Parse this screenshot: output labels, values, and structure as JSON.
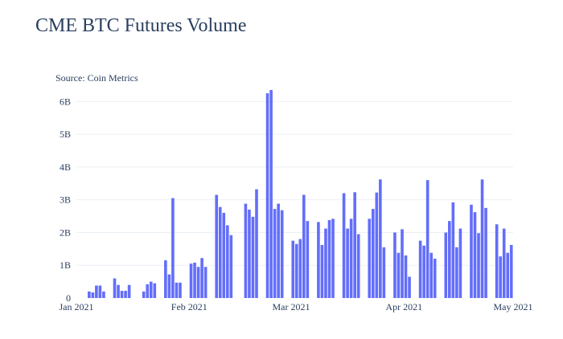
{
  "title": "CME BTC Futures Volume",
  "chart_data": {
    "type": "bar",
    "title": "CME BTC Futures Volume",
    "annotation": "Source: Coin Metrics",
    "xlabel": "",
    "ylabel": "",
    "x_start": "2021-01-01",
    "x_end": "2021-05-01",
    "x_ticks": [
      "Jan 2021",
      "Feb 2021",
      "Mar 2021",
      "Apr 2021",
      "May 2021"
    ],
    "y_ticks": [
      "0",
      "1B",
      "2B",
      "3B",
      "4B",
      "5B",
      "6B"
    ],
    "ylim": [
      0,
      6.4
    ],
    "y_unit": "B",
    "grid": true,
    "bar_color": "#636efa",
    "series": [
      {
        "x": [
          "2021-01-04",
          "2021-01-05",
          "2021-01-06",
          "2021-01-07",
          "2021-01-08",
          "2021-01-11",
          "2021-01-12",
          "2021-01-13",
          "2021-01-14",
          "2021-01-15",
          "2021-01-19",
          "2021-01-20",
          "2021-01-21",
          "2021-01-22",
          "2021-01-25",
          "2021-01-26",
          "2021-01-27",
          "2021-01-28",
          "2021-01-29",
          "2021-02-01",
          "2021-02-02",
          "2021-02-03",
          "2021-02-04",
          "2021-02-05",
          "2021-02-08",
          "2021-02-09",
          "2021-02-10",
          "2021-02-11",
          "2021-02-12",
          "2021-02-16",
          "2021-02-17",
          "2021-02-18",
          "2021-02-19",
          "2021-02-22",
          "2021-02-23",
          "2021-02-24",
          "2021-02-25",
          "2021-02-26",
          "2021-03-01",
          "2021-03-02",
          "2021-03-03",
          "2021-03-04",
          "2021-03-05",
          "2021-03-08",
          "2021-03-09",
          "2021-03-10",
          "2021-03-11",
          "2021-03-12",
          "2021-03-15",
          "2021-03-16",
          "2021-03-17",
          "2021-03-18",
          "2021-03-19",
          "2021-03-22",
          "2021-03-23",
          "2021-03-24",
          "2021-03-25",
          "2021-03-26",
          "2021-03-29",
          "2021-03-30",
          "2021-03-31",
          "2021-04-01",
          "2021-04-02",
          "2021-04-05",
          "2021-04-06",
          "2021-04-07",
          "2021-04-08",
          "2021-04-09",
          "2021-04-12",
          "2021-04-13",
          "2021-04-14",
          "2021-04-15",
          "2021-04-16",
          "2021-04-19",
          "2021-04-20",
          "2021-04-21",
          "2021-04-22",
          "2021-04-23",
          "2021-04-26",
          "2021-04-27",
          "2021-04-28",
          "2021-04-29",
          "2021-04-30"
        ],
        "values": [
          0.2,
          0.17,
          0.38,
          0.38,
          0.2,
          0.6,
          0.4,
          0.22,
          0.22,
          0.4,
          0.2,
          0.42,
          0.5,
          0.45,
          1.15,
          0.72,
          3.05,
          0.47,
          0.47,
          1.05,
          1.08,
          0.95,
          1.22,
          0.95,
          3.15,
          2.78,
          2.6,
          2.22,
          1.92,
          2.88,
          2.7,
          2.48,
          3.32,
          6.25,
          6.35,
          2.72,
          2.88,
          2.68,
          1.75,
          1.65,
          1.8,
          3.15,
          2.35,
          2.32,
          1.62,
          2.12,
          2.38,
          2.42,
          3.2,
          2.12,
          2.42,
          3.23,
          1.95,
          2.42,
          2.72,
          3.22,
          3.62,
          1.55,
          2.0,
          1.38,
          2.1,
          1.3,
          0.65,
          1.75,
          1.6,
          3.6,
          1.38,
          1.2,
          2.0,
          2.35,
          2.92,
          1.55,
          2.12,
          2.85,
          2.62,
          1.98,
          3.62,
          2.75,
          2.25,
          1.27,
          2.12,
          1.38,
          1.62
        ]
      }
    ]
  }
}
